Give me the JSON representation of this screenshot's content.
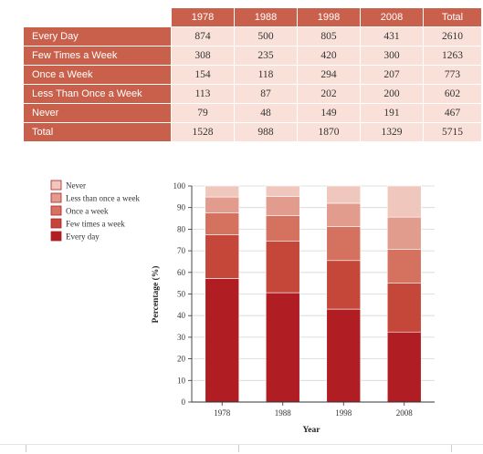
{
  "table": {
    "headers": [
      "1978",
      "1988",
      "1998",
      "2008",
      "Total"
    ],
    "rows": [
      {
        "label": "Every Day",
        "values": [
          "874",
          "500",
          "805",
          "431",
          "2610"
        ]
      },
      {
        "label": "Few Times a Week",
        "values": [
          "308",
          "235",
          "420",
          "300",
          "1263"
        ]
      },
      {
        "label": "Once a Week",
        "values": [
          "154",
          "118",
          "294",
          "207",
          "773"
        ]
      },
      {
        "label": "Less Than Once a Week",
        "values": [
          "113",
          "87",
          "202",
          "200",
          "602"
        ]
      },
      {
        "label": "Never",
        "values": [
          "79",
          "48",
          "149",
          "191",
          "467"
        ]
      },
      {
        "label": "Total",
        "values": [
          "1528",
          "988",
          "1870",
          "1329",
          "5715"
        ]
      }
    ]
  },
  "chart_data": {
    "type": "bar",
    "stacked": true,
    "categories": [
      "1978",
      "1988",
      "1998",
      "2008"
    ],
    "series": [
      {
        "name": "Every day",
        "color": "#b01e24",
        "values": [
          57.2,
          50.6,
          43.0,
          32.4
        ]
      },
      {
        "name": "Few times a week",
        "color": "#c4473a",
        "values": [
          20.2,
          23.8,
          22.5,
          22.6
        ]
      },
      {
        "name": "Once a week",
        "color": "#d4715f",
        "values": [
          10.1,
          11.9,
          15.7,
          15.6
        ]
      },
      {
        "name": "Less than once a week",
        "color": "#e19c8d",
        "values": [
          7.4,
          8.8,
          10.8,
          15.0
        ]
      },
      {
        "name": "Never",
        "color": "#f0c7bc",
        "values": [
          5.1,
          4.9,
          8.0,
          14.4
        ]
      }
    ],
    "legend_order": [
      "Never",
      "Less than once a week",
      "Once a week",
      "Few times a week",
      "Every day"
    ],
    "ylim": [
      0,
      100
    ],
    "yticks": [
      "0",
      "10",
      "20",
      "30",
      "40",
      "50",
      "60",
      "70",
      "80",
      "90",
      "100"
    ],
    "xlabel": "Year",
    "ylabel": "Percentage (%)",
    "legend_position": "top-left"
  }
}
